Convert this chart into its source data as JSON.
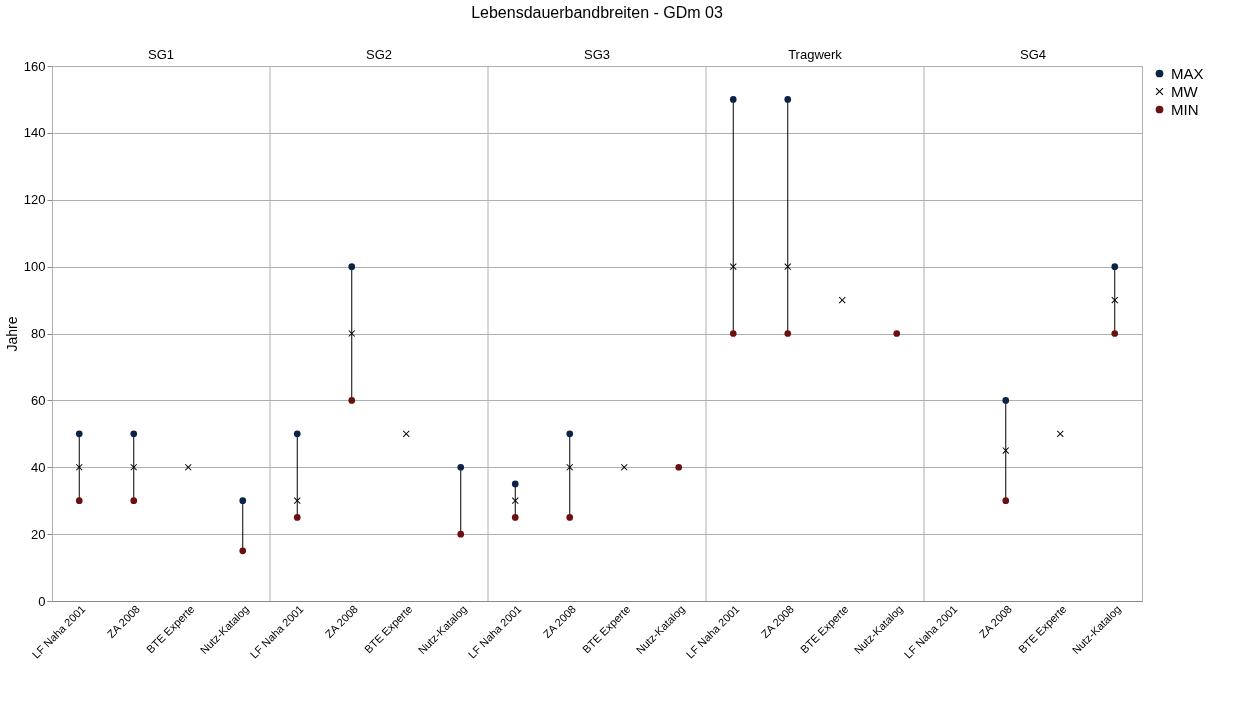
{
  "chart_data": {
    "type": "scatter",
    "title": "Lebensdauerbandbreiten - GDm 03",
    "ylabel": "Jahre",
    "categories": [
      "LF Naha 2001",
      "ZA 2008",
      "BTE Experte",
      "Nutz-Katalog",
      "LF Naha 2001",
      "ZA 2008",
      "BTE Experte",
      "Nutz-Katalog",
      "LF Naha 2001",
      "ZA 2008",
      "BTE Experte",
      "Nutz-Katalog",
      "LF Naha 2001",
      "ZA 2008",
      "BTE Experte",
      "Nutz-Katalog",
      "LF Naha 2001",
      "ZA 2008",
      "BTE Experte",
      "Nutz-Katalog"
    ],
    "series": [
      {
        "name": "MAX",
        "color": "#0b2346",
        "marker": "circle",
        "values": [
          50,
          50,
          null,
          30,
          50,
          100,
          null,
          40,
          35,
          50,
          null,
          null,
          150,
          150,
          null,
          null,
          null,
          60,
          null,
          100
        ]
      },
      {
        "name": "MW",
        "color": "#000000",
        "marker": "cross",
        "values": [
          40,
          40,
          40,
          null,
          30,
          80,
          50,
          null,
          30,
          40,
          40,
          null,
          100,
          100,
          90,
          null,
          null,
          45,
          50,
          90
        ]
      },
      {
        "name": "MIN",
        "color": "#6b1010",
        "marker": "circle",
        "values": [
          30,
          30,
          null,
          15,
          25,
          60,
          null,
          20,
          25,
          25,
          null,
          40,
          80,
          80,
          null,
          80,
          null,
          30,
          null,
          80
        ]
      }
    ],
    "annotations": [
      "SG1",
      "SG2",
      "SG3",
      "Tragwerk",
      "SG4"
    ],
    "ylim": [
      0,
      160
    ],
    "yticks": [
      0,
      20,
      40,
      60,
      80,
      100,
      120,
      140,
      160
    ],
    "grid": true,
    "legend": "right"
  }
}
